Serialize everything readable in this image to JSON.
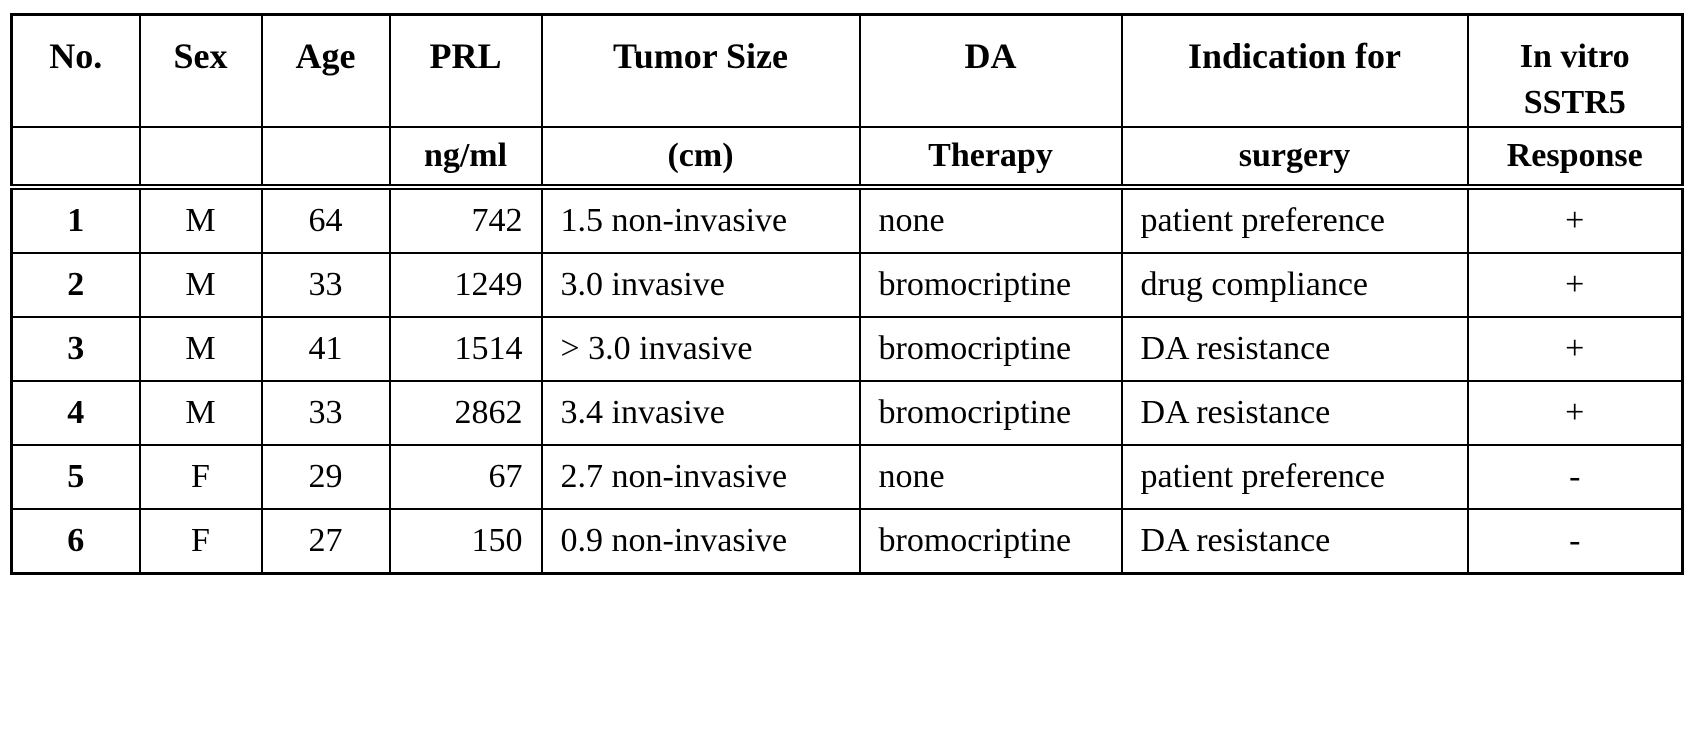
{
  "table": {
    "header_top": [
      "No.",
      "Sex",
      "Age",
      "PRL",
      "Tumor Size",
      "DA",
      "Indication for",
      "In vitro SSTR5"
    ],
    "header_top_lines": {
      "in_vitro_line1": "In vitro",
      "in_vitro_line2": "SSTR5"
    },
    "header_bottom": [
      "",
      "",
      "",
      "ng/ml",
      "(cm)",
      "Therapy",
      "surgery",
      "Response"
    ],
    "rows": [
      {
        "no": "1",
        "sex": "M",
        "age": "64",
        "prl": "742",
        "tumor": "1.5 non-invasive",
        "da": "none",
        "indication": "patient preference",
        "response": "+"
      },
      {
        "no": "2",
        "sex": "M",
        "age": "33",
        "prl": "1249",
        "tumor": "3.0 invasive",
        "da": "bromocriptine",
        "indication": "drug compliance",
        "response": "+"
      },
      {
        "no": "3",
        "sex": "M",
        "age": "41",
        "prl": "1514",
        "tumor": "> 3.0 invasive",
        "da": "bromocriptine",
        "indication": "DA resistance",
        "response": "+"
      },
      {
        "no": "4",
        "sex": "M",
        "age": "33",
        "prl": "2862",
        "tumor": "3.4 invasive",
        "da": "bromocriptine",
        "indication": "DA resistance",
        "response": "+"
      },
      {
        "no": "5",
        "sex": "F",
        "age": "29",
        "prl": "67",
        "tumor": "2.7 non-invasive",
        "da": "none",
        "indication": "patient preference",
        "response": "-"
      },
      {
        "no": "6",
        "sex": "F",
        "age": "27",
        "prl": "150",
        "tumor": "0.9 non-invasive",
        "da": "bromocriptine",
        "indication": "DA resistance",
        "response": "-"
      }
    ]
  }
}
